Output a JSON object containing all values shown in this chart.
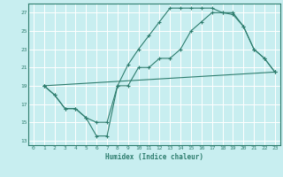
{
  "xlabel": "Humidex (Indice chaleur)",
  "bg_color": "#c8eef0",
  "grid_color": "#ffffff",
  "line_color": "#2e7d6e",
  "xlim": [
    -0.5,
    23.5
  ],
  "ylim": [
    12.5,
    28
  ],
  "xticks": [
    0,
    1,
    2,
    3,
    4,
    5,
    6,
    7,
    8,
    9,
    10,
    11,
    12,
    13,
    14,
    15,
    16,
    17,
    18,
    19,
    20,
    21,
    22,
    23
  ],
  "yticks": [
    13,
    15,
    17,
    19,
    21,
    23,
    25,
    27
  ],
  "line1_x": [
    1,
    2,
    3,
    4,
    5,
    6,
    7,
    8,
    9,
    10,
    11,
    12,
    13,
    14,
    15,
    16,
    17,
    18,
    19,
    20,
    21,
    22,
    23
  ],
  "line1_y": [
    19,
    18,
    16.5,
    16.5,
    15.5,
    15,
    15,
    19,
    21.3,
    23,
    24.5,
    26,
    27.5,
    27.5,
    27.5,
    27.5,
    27.5,
    27.0,
    26.8,
    25.5,
    23,
    22,
    20.5
  ],
  "line2_x": [
    1,
    2,
    3,
    4,
    5,
    6,
    7,
    8,
    9,
    10,
    11,
    12,
    13,
    14,
    15,
    16,
    17,
    18,
    19,
    20,
    21,
    22,
    23
  ],
  "line2_y": [
    19,
    18,
    16.5,
    16.5,
    15.5,
    13.5,
    13.5,
    19,
    19,
    21,
    21,
    22,
    22,
    23,
    25,
    26,
    27,
    27,
    27,
    25.5,
    23,
    22,
    20.5
  ],
  "line3_x": [
    1,
    23
  ],
  "line3_y": [
    19,
    20.5
  ]
}
